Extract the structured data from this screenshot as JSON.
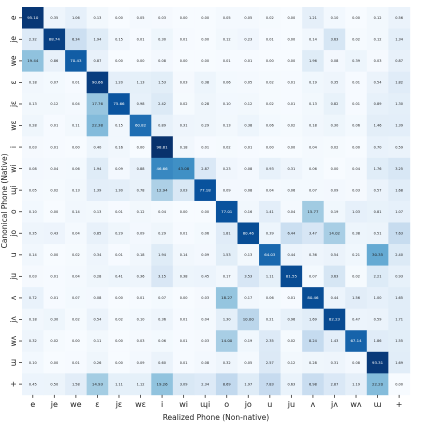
{
  "chart_data": {
    "type": "heatmap",
    "xlabel": "Realized Phone (Non-native)",
    "ylabel": "Canonical Phone (Native)",
    "x_categories": [
      "e",
      "je",
      "we",
      "ɛ",
      "jɛ",
      "wɛ",
      "i",
      "wi",
      "ɰi",
      "o",
      "jo",
      "u",
      "ju",
      "ʌ",
      "jʌ",
      "wʌ",
      "ɯ",
      "+"
    ],
    "y_categories": [
      "e",
      "je",
      "we",
      "ɛ",
      "jɛ",
      "wɛ",
      "i",
      "wi",
      "ɰi",
      "o",
      "jo",
      "u",
      "ju",
      "ʌ",
      "jʌ",
      "wʌ",
      "ɯ",
      "+"
    ],
    "values": [
      [
        95.1,
        0.35,
        1.06,
        0.13,
        0.0,
        0.05,
        0.03,
        0.0,
        0.0,
        0.05,
        0.05,
        0.02,
        0.0,
        1.21,
        0.1,
        0.0,
        0.12,
        0.56
      ],
      [
        2.32,
        88.74,
        6.34,
        1.94,
        0.15,
        0.01,
        0.3,
        0.01,
        0.0,
        0.12,
        0.23,
        0.01,
        0.0,
        0.14,
        3.63,
        0.02,
        0.12,
        1.34
      ],
      [
        19.44,
        0.86,
        70.43,
        0.87,
        0.0,
        0.0,
        0.08,
        0.0,
        0.0,
        0.01,
        0.01,
        0.0,
        0.0,
        1.96,
        0.08,
        0.39,
        0.03,
        0.87
      ],
      [
        0.18,
        0.07,
        0.01,
        90.66,
        1.2,
        1.13,
        1.53,
        0.03,
        0.38,
        0.06,
        0.05,
        0.02,
        0.01,
        0.19,
        0.35,
        0.01,
        0.54,
        1.82
      ],
      [
        0.13,
        0.12,
        0.04,
        17.76,
        75.66,
        0.98,
        2.42,
        0.02,
        0.28,
        0.1,
        0.12,
        0.02,
        0.01,
        0.13,
        0.82,
        0.01,
        0.89,
        1.3
      ],
      [
        0.28,
        0.01,
        0.11,
        22.38,
        0.15,
        60.82,
        0.89,
        0.31,
        0.29,
        0.13,
        0.38,
        0.06,
        0.02,
        0.18,
        0.3,
        0.06,
        1.46,
        1.39
      ],
      [
        0.03,
        0.01,
        0.0,
        0.4,
        0.16,
        0.0,
        98.81,
        0.18,
        0.01,
        0.02,
        0.01,
        0.0,
        0.0,
        0.04,
        0.02,
        0.0,
        0.7,
        0.59
      ],
      [
        0.08,
        0.04,
        0.06,
        1.94,
        0.09,
        0.88,
        46.66,
        43.08,
        2.87,
        0.23,
        0.08,
        0.93,
        0.31,
        0.06,
        0.0,
        0.04,
        1.76,
        3.25
      ],
      [
        0.05,
        0.02,
        0.13,
        1.39,
        1.3,
        0.78,
        12.94,
        3.03,
        77.18,
        0.09,
        0.08,
        0.04,
        0.06,
        0.07,
        0.09,
        0.03,
        0.57,
        1.68
      ],
      [
        0.1,
        0.0,
        0.14,
        0.13,
        0.01,
        0.12,
        0.04,
        0.0,
        0.0,
        77.01,
        0.16,
        1.41,
        0.04,
        15.77,
        0.19,
        1.03,
        0.81,
        1.07
      ],
      [
        0.35,
        0.43,
        0.04,
        0.85,
        0.29,
        0.09,
        0.29,
        0.01,
        0.06,
        1.81,
        80.46,
        0.39,
        6.44,
        3.47,
        14.02,
        0.38,
        0.51,
        7.63
      ],
      [
        0.14,
        0.0,
        0.02,
        0.34,
        0.01,
        0.18,
        1.94,
        0.14,
        0.09,
        1.53,
        0.13,
        64.03,
        0.44,
        0.36,
        0.54,
        0.21,
        30.35,
        2.4
      ],
      [
        0.03,
        0.01,
        0.04,
        0.28,
        0.41,
        0.36,
        3.15,
        0.38,
        0.45,
        0.17,
        3.53,
        1.11,
        81.55,
        0.07,
        3.63,
        0.02,
        2.21,
        0.93
      ],
      [
        0.72,
        0.01,
        0.07,
        0.08,
        0.0,
        0.01,
        0.07,
        0.0,
        0.03,
        18.27,
        0.17,
        0.06,
        0.01,
        80.46,
        0.44,
        1.56,
        1.0,
        1.65
      ],
      [
        0.18,
        0.3,
        0.02,
        0.54,
        0.02,
        0.1,
        0.36,
        0.01,
        0.04,
        1.3,
        10.0,
        0.21,
        0.96,
        1.69,
        82.23,
        0.47,
        0.59,
        1.71
      ],
      [
        0.32,
        0.02,
        0.0,
        0.11,
        0.0,
        0.03,
        0.06,
        0.01,
        0.03,
        14.0,
        0.19,
        2.35,
        0.02,
        8.24,
        1.43,
        67.14,
        1.86,
        1.55
      ],
      [
        0.1,
        0.0,
        0.01,
        0.26,
        0.0,
        0.09,
        0.6,
        0.01,
        0.08,
        0.32,
        0.05,
        2.57,
        0.12,
        0.28,
        0.31,
        0.08,
        93.31,
        1.69
      ],
      [
        0.45,
        0.5,
        1.58,
        14.93,
        1.11,
        1.12,
        19.26,
        3.09,
        2.34,
        8.69,
        1.97,
        7.83,
        0.63,
        6.98,
        2.87,
        1.19,
        22.2,
        0.0
      ]
    ],
    "color_scale": {
      "low": "#f7fbff",
      "mid": "#9ecae1",
      "high": "#08306b"
    }
  }
}
